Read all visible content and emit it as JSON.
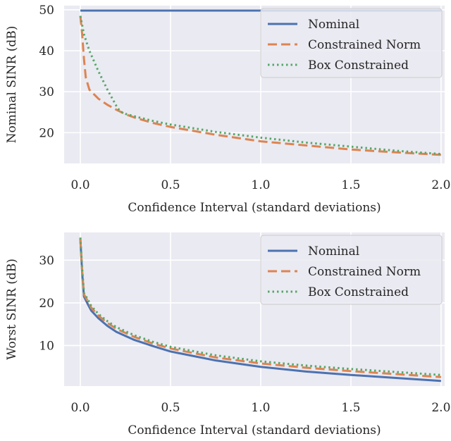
{
  "chart_data": [
    {
      "type": "line",
      "xlabel": "Confidence Interval (standard deviations)",
      "ylabel": "Nominal SINR (dB)",
      "xlim": [
        -0.09,
        2.02
      ],
      "ylim": [
        12.5,
        51
      ],
      "xticks": [
        0.0,
        0.5,
        1.0,
        1.5,
        2.0
      ],
      "xtick_labels": [
        "0.0",
        "0.5",
        "1.0",
        "1.5",
        "2.0"
      ],
      "yticks": [
        20,
        30,
        40,
        50
      ],
      "ytick_labels": [
        "20",
        "30",
        "40",
        "50"
      ],
      "grid": true,
      "legend_position": "top-right",
      "series": [
        {
          "name": "Nominal",
          "color": "#4c72b0",
          "style": "solid",
          "x": [
            0.0,
            0.25,
            0.5,
            0.75,
            1.0,
            1.25,
            1.5,
            1.75,
            2.0
          ],
          "y": [
            49.8,
            49.8,
            49.8,
            49.8,
            49.8,
            49.8,
            49.8,
            49.8,
            49.8
          ]
        },
        {
          "name": "Constrained Norm",
          "color": "#dd8452",
          "style": "dashed",
          "x": [
            0.0,
            0.01,
            0.02,
            0.03,
            0.05,
            0.1,
            0.15,
            0.2,
            0.25,
            0.3,
            0.4,
            0.5,
            0.75,
            1.0,
            1.25,
            1.5,
            1.75,
            2.0
          ],
          "y": [
            48.5,
            44,
            38,
            33.5,
            30.5,
            28.3,
            26.8,
            25.6,
            24.5,
            23.7,
            22.4,
            21.4,
            19.5,
            17.9,
            16.9,
            15.9,
            15.2,
            14.6
          ]
        },
        {
          "name": "Box Constrained",
          "color": "#55a868",
          "style": "dotted",
          "x": [
            0.0,
            0.02,
            0.05,
            0.1,
            0.15,
            0.2,
            0.22,
            0.25,
            0.3,
            0.4,
            0.5,
            0.75,
            1.0,
            1.25,
            1.5,
            1.75,
            2.0
          ],
          "y": [
            48.5,
            44,
            40,
            35,
            30.5,
            26.5,
            25.2,
            24.6,
            24.0,
            22.9,
            22.0,
            20.2,
            18.8,
            17.6,
            16.6,
            15.6,
            14.8
          ]
        }
      ]
    },
    {
      "type": "line",
      "xlabel": "Confidence Interval (standard deviations)",
      "ylabel": "Worst SINR (dB)",
      "xlim": [
        -0.09,
        2.02
      ],
      "ylim": [
        0.5,
        36.5
      ],
      "xticks": [
        0.0,
        0.5,
        1.0,
        1.5,
        2.0
      ],
      "xtick_labels": [
        "0.0",
        "0.5",
        "1.0",
        "1.5",
        "2.0"
      ],
      "yticks": [
        10,
        20,
        30
      ],
      "ytick_labels": [
        "10",
        "20",
        "30"
      ],
      "grid": true,
      "legend_position": "top-right",
      "series": [
        {
          "name": "Nominal",
          "color": "#4c72b0",
          "style": "solid",
          "x": [
            0.0,
            0.01,
            0.02,
            0.04,
            0.06,
            0.1,
            0.15,
            0.2,
            0.3,
            0.4,
            0.5,
            0.75,
            1.0,
            1.25,
            1.5,
            1.75,
            2.0
          ],
          "y": [
            35,
            27,
            21.5,
            19.8,
            18.2,
            16.4,
            14.6,
            13.2,
            11.3,
            9.9,
            8.6,
            6.5,
            5.0,
            3.9,
            3.1,
            2.4,
            1.7
          ]
        },
        {
          "name": "Constrained Norm",
          "color": "#dd8452",
          "style": "dashed",
          "x": [
            0.0,
            0.01,
            0.02,
            0.04,
            0.06,
            0.1,
            0.15,
            0.2,
            0.3,
            0.4,
            0.5,
            0.75,
            1.0,
            1.25,
            1.5,
            1.75,
            2.0
          ],
          "y": [
            35,
            27.5,
            22,
            20.5,
            18.9,
            17.0,
            15.3,
            13.9,
            12.0,
            10.5,
            9.3,
            7.2,
            5.8,
            4.8,
            4.0,
            3.3,
            2.6
          ]
        },
        {
          "name": "Box Constrained",
          "color": "#55a868",
          "style": "dotted",
          "x": [
            0.0,
            0.01,
            0.02,
            0.04,
            0.06,
            0.1,
            0.15,
            0.2,
            0.3,
            0.4,
            0.5,
            0.75,
            1.0,
            1.25,
            1.5,
            1.75,
            2.0
          ],
          "y": [
            35.3,
            28,
            22.3,
            20.9,
            19.3,
            17.4,
            15.7,
            14.3,
            12.4,
            10.9,
            9.7,
            7.7,
            6.3,
            5.3,
            4.5,
            3.8,
            3.1
          ]
        }
      ]
    }
  ]
}
